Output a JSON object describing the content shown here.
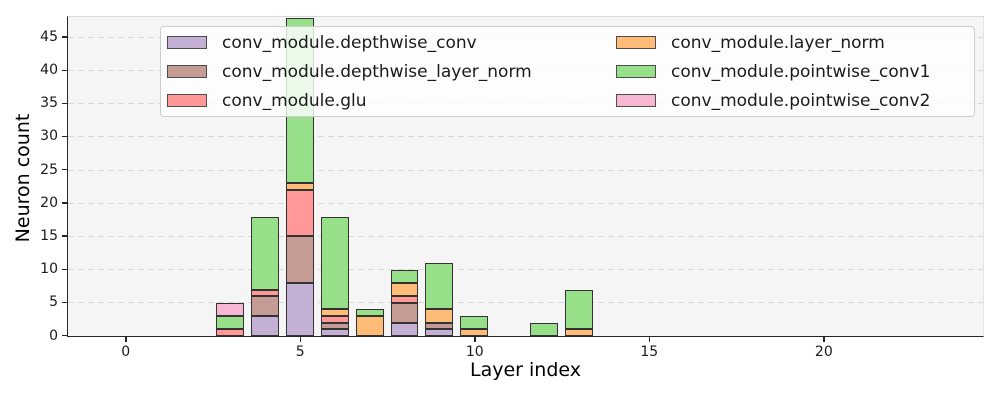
{
  "chart_data": {
    "type": "bar",
    "stacked": true,
    "title": "",
    "xlabel": "Layer index",
    "ylabel": "Neuron count",
    "xlim": [
      -1.64,
      24.56
    ],
    "ylim": [
      0,
      48
    ],
    "x_ticks": [
      0,
      5,
      10,
      15,
      20
    ],
    "y_ticks": [
      0,
      5,
      10,
      15,
      20,
      25,
      30,
      35,
      40,
      45
    ],
    "bar_width": 0.8,
    "grid": "horizontal-dashed",
    "edge_color": "#333333",
    "legend_position": "upper-center-2-columns",
    "series": [
      {
        "name": "conv_module.depthwise_conv",
        "color": "#c5b0d5",
        "points": {
          "4": 3,
          "5": 8,
          "6": 1,
          "8": 2,
          "9": 1
        }
      },
      {
        "name": "conv_module.depthwise_layer_norm",
        "color": "#c49c94",
        "points": {
          "4": 3,
          "5": 7,
          "6": 1,
          "8": 3,
          "9": 1
        }
      },
      {
        "name": "conv_module.glu",
        "color": "#ff9896",
        "points": {
          "3": 1,
          "4": 1,
          "5": 7,
          "6": 1,
          "8": 1
        }
      },
      {
        "name": "conv_module.layer_norm",
        "color": "#ffbb78",
        "points": {
          "5": 1,
          "6": 1,
          "7": 3,
          "8": 2,
          "9": 2,
          "10": 1,
          "13": 1
        }
      },
      {
        "name": "conv_module.pointwise_conv1",
        "color": "#98df8a",
        "points": {
          "3": 2,
          "4": 11,
          "5": 25,
          "6": 14,
          "7": 1,
          "8": 2,
          "9": 7,
          "10": 2,
          "12": 2,
          "13": 6
        }
      },
      {
        "name": "conv_module.pointwise_conv2",
        "color": "#f7b6d2",
        "points": {
          "3": 2
        }
      }
    ],
    "totals_by_layer": {
      "3": 5,
      "4": 18,
      "5": 48,
      "6": 18,
      "7": 4,
      "8": 10,
      "9": 11,
      "10": 3,
      "12": 2,
      "13": 7
    }
  }
}
